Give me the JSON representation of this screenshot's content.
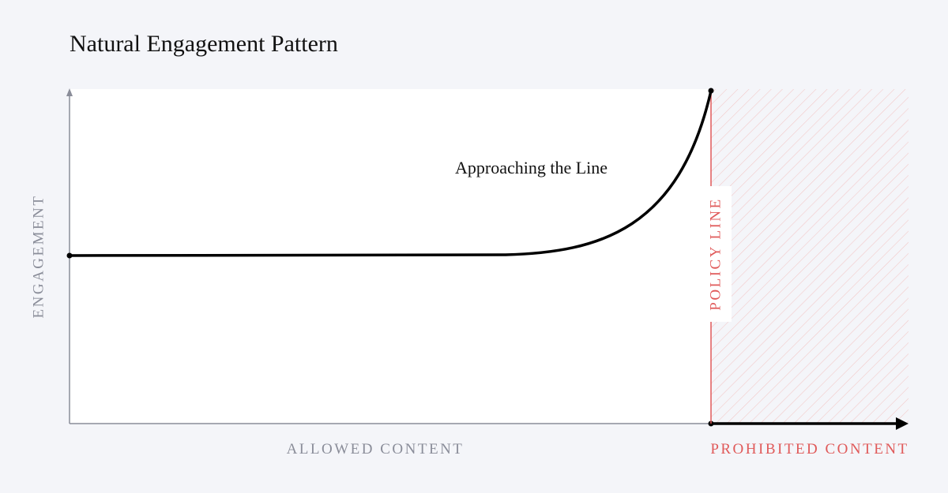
{
  "title": "Natural Engagement Pattern",
  "annotation": "Approaching the Line",
  "y_axis_label": "ENGAGEMENT",
  "x_axis_allowed_label": "ALLOWED CONTENT",
  "x_axis_prohibited_label": "PROHIBITED CONTENT",
  "policy_line_label": "POLICY LINE"
}
